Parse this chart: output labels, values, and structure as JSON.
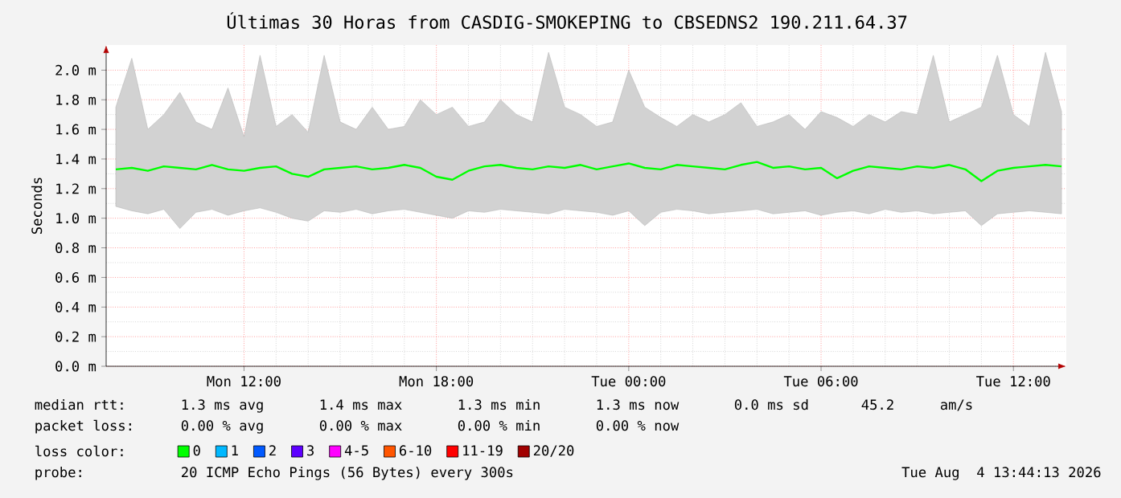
{
  "chart_data": {
    "type": "line",
    "title": "Últimas 30 Horas from CASDIG-SMOKEPING to CBSEDNS2 190.211.64.37",
    "ylabel": "Seconds",
    "x": [
      "2026-08-03T08:00",
      "2026-08-03T08:30",
      "2026-08-03T09:00",
      "2026-08-03T09:30",
      "2026-08-03T10:00",
      "2026-08-03T10:30",
      "2026-08-03T11:00",
      "2026-08-03T11:30",
      "2026-08-03T12:00",
      "2026-08-03T12:30",
      "2026-08-03T13:00",
      "2026-08-03T13:30",
      "2026-08-03T14:00",
      "2026-08-03T14:30",
      "2026-08-03T15:00",
      "2026-08-03T15:30",
      "2026-08-03T16:00",
      "2026-08-03T16:30",
      "2026-08-03T17:00",
      "2026-08-03T17:30",
      "2026-08-03T18:00",
      "2026-08-03T18:30",
      "2026-08-03T19:00",
      "2026-08-03T19:30",
      "2026-08-03T20:00",
      "2026-08-03T20:30",
      "2026-08-03T21:00",
      "2026-08-03T21:30",
      "2026-08-03T22:00",
      "2026-08-03T22:30",
      "2026-08-03T23:00",
      "2026-08-03T23:30",
      "2026-08-04T00:00",
      "2026-08-04T00:30",
      "2026-08-04T01:00",
      "2026-08-04T01:30",
      "2026-08-04T02:00",
      "2026-08-04T02:30",
      "2026-08-04T03:00",
      "2026-08-04T03:30",
      "2026-08-04T04:00",
      "2026-08-04T04:30",
      "2026-08-04T05:00",
      "2026-08-04T05:30",
      "2026-08-04T06:00",
      "2026-08-04T06:30",
      "2026-08-04T07:00",
      "2026-08-04T07:30",
      "2026-08-04T08:00",
      "2026-08-04T08:30",
      "2026-08-04T09:00",
      "2026-08-04T09:30",
      "2026-08-04T10:00",
      "2026-08-04T10:30",
      "2026-08-04T11:00",
      "2026-08-04T11:30",
      "2026-08-04T12:00",
      "2026-08-04T12:30",
      "2026-08-04T13:00",
      "2026-08-04T13:30"
    ],
    "series": [
      {
        "name": "0",
        "color": "#00ff00",
        "values": [
          1.33,
          1.34,
          1.32,
          1.35,
          1.34,
          1.33,
          1.36,
          1.33,
          1.32,
          1.34,
          1.35,
          1.3,
          1.28,
          1.33,
          1.34,
          1.35,
          1.33,
          1.34,
          1.36,
          1.34,
          1.28,
          1.26,
          1.32,
          1.35,
          1.36,
          1.34,
          1.33,
          1.35,
          1.34,
          1.36,
          1.33,
          1.35,
          1.37,
          1.34,
          1.33,
          1.36,
          1.35,
          1.34,
          1.33,
          1.36,
          1.38,
          1.34,
          1.35,
          1.33,
          1.34,
          1.27,
          1.32,
          1.35,
          1.34,
          1.33,
          1.35,
          1.34,
          1.36,
          1.33,
          1.25,
          1.32,
          1.34,
          1.35,
          1.36,
          1.35
        ],
        "lower": [
          1.08,
          1.05,
          1.03,
          1.06,
          0.93,
          1.04,
          1.06,
          1.02,
          1.05,
          1.07,
          1.04,
          1.0,
          0.98,
          1.05,
          1.04,
          1.06,
          1.03,
          1.05,
          1.06,
          1.04,
          1.02,
          1.0,
          1.05,
          1.04,
          1.06,
          1.05,
          1.04,
          1.03,
          1.06,
          1.05,
          1.04,
          1.02,
          1.05,
          0.95,
          1.04,
          1.06,
          1.05,
          1.03,
          1.04,
          1.05,
          1.06,
          1.03,
          1.04,
          1.05,
          1.02,
          1.04,
          1.05,
          1.03,
          1.06,
          1.04,
          1.05,
          1.03,
          1.04,
          1.05,
          0.95,
          1.03,
          1.04,
          1.05,
          1.04,
          1.03
        ],
        "upper": [
          1.75,
          2.08,
          1.6,
          1.7,
          1.85,
          1.65,
          1.6,
          1.88,
          1.55,
          2.1,
          1.62,
          1.7,
          1.58,
          2.1,
          1.65,
          1.6,
          1.75,
          1.6,
          1.62,
          1.8,
          1.7,
          1.75,
          1.62,
          1.65,
          1.8,
          1.7,
          1.65,
          2.12,
          1.75,
          1.7,
          1.62,
          1.65,
          2.0,
          1.75,
          1.68,
          1.62,
          1.7,
          1.65,
          1.7,
          1.78,
          1.62,
          1.65,
          1.7,
          1.6,
          1.72,
          1.68,
          1.62,
          1.7,
          1.65,
          1.72,
          1.7,
          2.1,
          1.65,
          1.7,
          1.75,
          2.1,
          1.7,
          1.62,
          2.12,
          1.72
        ]
      },
      {
        "name": "1",
        "color": "#00b8ff",
        "values": [
          null,
          null,
          null,
          null,
          null,
          null,
          null,
          null,
          null,
          null,
          null,
          null,
          null,
          null,
          null,
          null,
          null,
          null,
          null,
          null,
          null,
          null,
          null,
          null,
          null,
          null,
          null,
          null,
          null,
          null,
          null,
          null,
          null,
          null,
          null,
          null,
          null,
          null,
          null,
          null,
          null,
          null,
          null,
          null,
          null,
          null,
          null,
          null,
          null,
          null,
          null,
          null,
          null,
          null,
          null,
          null,
          null,
          null,
          null,
          null
        ]
      },
      {
        "name": "2",
        "color": "#0059ff",
        "values": [
          null,
          null,
          null,
          null,
          null,
          null,
          null,
          null,
          null,
          null,
          null,
          null,
          null,
          null,
          null,
          null,
          null,
          null,
          null,
          null,
          null,
          null,
          null,
          null,
          null,
          null,
          null,
          null,
          null,
          null,
          null,
          null,
          null,
          null,
          null,
          null,
          null,
          null,
          null,
          null,
          null,
          null,
          null,
          null,
          null,
          null,
          null,
          null,
          null,
          null,
          null,
          null,
          null,
          null,
          null,
          null,
          null,
          null,
          null,
          null
        ]
      },
      {
        "name": "3",
        "color": "#5e00ff",
        "values": [
          null,
          null,
          null,
          null,
          null,
          null,
          null,
          null,
          null,
          null,
          null,
          null,
          null,
          null,
          null,
          null,
          null,
          null,
          null,
          null,
          null,
          null,
          null,
          null,
          null,
          null,
          null,
          null,
          null,
          null,
          null,
          null,
          null,
          null,
          null,
          null,
          null,
          null,
          null,
          null,
          null,
          null,
          null,
          null,
          null,
          null,
          null,
          null,
          null,
          null,
          null,
          null,
          null,
          null,
          null,
          null,
          null,
          null,
          null,
          null
        ]
      },
      {
        "name": "4-5",
        "color": "#ff00ff",
        "values": [
          null,
          null,
          null,
          null,
          null,
          null,
          null,
          null,
          null,
          null,
          null,
          null,
          null,
          null,
          null,
          null,
          null,
          null,
          null,
          null,
          null,
          null,
          null,
          null,
          null,
          null,
          null,
          null,
          null,
          null,
          null,
          null,
          null,
          null,
          null,
          null,
          null,
          null,
          null,
          null,
          null,
          null,
          null,
          null,
          null,
          null,
          null,
          null,
          null,
          null,
          null,
          null,
          null,
          null,
          null,
          null,
          null,
          null,
          null,
          null
        ]
      },
      {
        "name": "6-10",
        "color": "#ff5500",
        "values": [
          null,
          null,
          null,
          null,
          null,
          null,
          null,
          null,
          null,
          null,
          null,
          null,
          null,
          null,
          null,
          null,
          null,
          null,
          null,
          null,
          null,
          null,
          null,
          null,
          null,
          null,
          null,
          null,
          null,
          null,
          null,
          null,
          null,
          null,
          null,
          null,
          null,
          null,
          null,
          null,
          null,
          null,
          null,
          null,
          null,
          null,
          null,
          null,
          null,
          null,
          null,
          null,
          null,
          null,
          null,
          null,
          null,
          null,
          null,
          null
        ]
      },
      {
        "name": "11-19",
        "color": "#ff0000",
        "values": [
          null,
          null,
          null,
          null,
          null,
          null,
          null,
          null,
          null,
          null,
          null,
          null,
          null,
          null,
          null,
          null,
          null,
          null,
          null,
          null,
          null,
          null,
          null,
          null,
          null,
          null,
          null,
          null,
          null,
          null,
          null,
          null,
          null,
          null,
          null,
          null,
          null,
          null,
          null,
          null,
          null,
          null,
          null,
          null,
          null,
          null,
          null,
          null,
          null,
          null,
          null,
          null,
          null,
          null,
          null,
          null,
          null,
          null,
          null,
          null
        ]
      },
      {
        "name": "20/20",
        "color": "#a10000",
        "values": [
          null,
          null,
          null,
          null,
          null,
          null,
          null,
          null,
          null,
          null,
          null,
          null,
          null,
          null,
          null,
          null,
          null,
          null,
          null,
          null,
          null,
          null,
          null,
          null,
          null,
          null,
          null,
          null,
          null,
          null,
          null,
          null,
          null,
          null,
          null,
          null,
          null,
          null,
          null,
          null,
          null,
          null,
          null,
          null,
          null,
          null,
          null,
          null,
          null,
          null,
          null,
          null,
          null,
          null,
          null,
          null,
          null,
          null,
          null,
          null
        ]
      }
    ],
    "xlim": [
      "2026-08-03T07:42",
      "2026-08-04T13:39"
    ],
    "xticks": [
      {
        "value": "2026-08-03T12:00",
        "label": "Mon 12:00"
      },
      {
        "value": "2026-08-03T18:00",
        "label": "Mon 18:00"
      },
      {
        "value": "2026-08-04T00:00",
        "label": "Tue 00:00"
      },
      {
        "value": "2026-08-04T06:00",
        "label": "Tue 06:00"
      },
      {
        "value": "2026-08-04T12:00",
        "label": "Tue 12:00"
      }
    ],
    "ylim": [
      0,
      2.17
    ],
    "yticks": [
      {
        "value": 0,
        "label": "0.0 m"
      },
      {
        "value": 0.2,
        "label": "0.2 m"
      },
      {
        "value": 0.4,
        "label": "0.4 m"
      },
      {
        "value": 0.6,
        "label": "0.6 m"
      },
      {
        "value": 0.8,
        "label": "0.8 m"
      },
      {
        "value": 1.0,
        "label": "1.0 m"
      },
      {
        "value": 1.2,
        "label": "1.2 m"
      },
      {
        "value": 1.4,
        "label": "1.4 m"
      },
      {
        "value": 1.6,
        "label": "1.6 m"
      },
      {
        "value": 1.8,
        "label": "1.8 m"
      },
      {
        "value": 2.0,
        "label": "2.0 m"
      }
    ],
    "grid": true,
    "legend": "bottom",
    "annotations": [
      "median rtt:",
      "1.3 ms avg",
      "1.4 ms max",
      "1.3 ms min",
      "1.3 ms now",
      "0.0 ms sd",
      "45.2",
      "am/s",
      "packet loss:",
      "0.00 % avg",
      "0.00 % max",
      "0.00 % min",
      "0.00 % now",
      "loss color:",
      "probe:",
      "20 ICMP Echo Pings (56 Bytes) every 300s",
      "Tue Aug  4 13:44:13 2026"
    ]
  }
}
